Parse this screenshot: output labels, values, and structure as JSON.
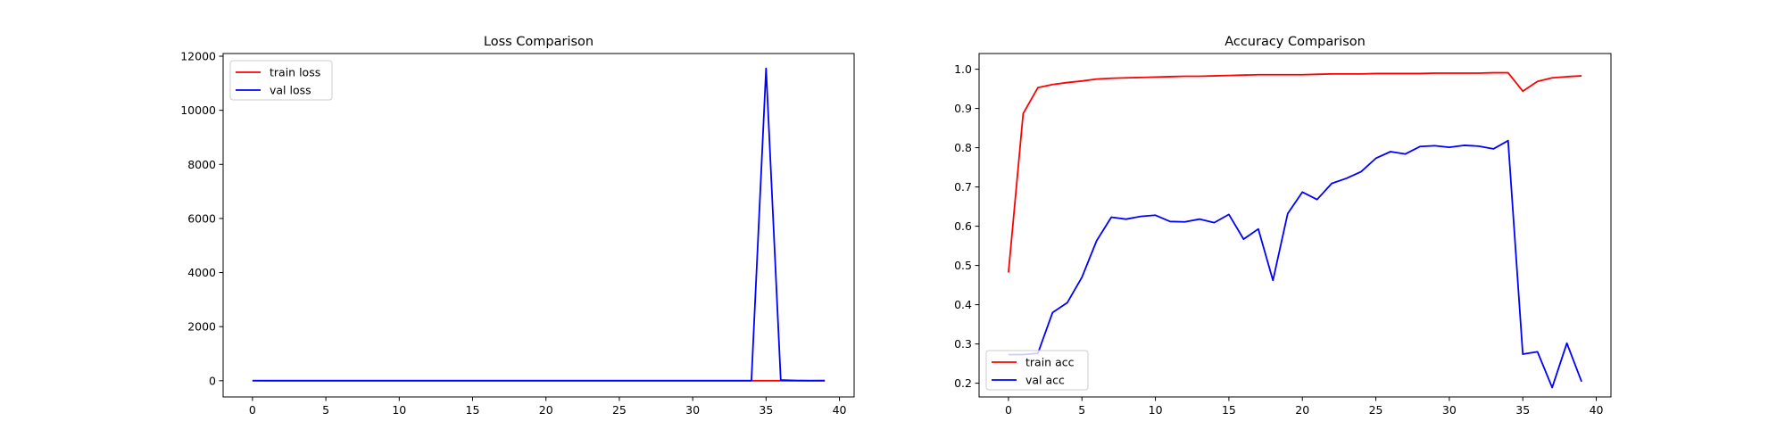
{
  "chart_data": [
    {
      "type": "line",
      "title": "Loss Comparison",
      "xlabel": "",
      "ylabel": "",
      "xlim": [
        -2,
        41
      ],
      "ylim": [
        -600,
        12100
      ],
      "xticks": [
        0,
        5,
        10,
        15,
        20,
        25,
        30,
        35,
        40
      ],
      "yticks": [
        0,
        2000,
        4000,
        6000,
        8000,
        10000,
        12000
      ],
      "grid": false,
      "legend_position": "upper-left",
      "x": [
        0,
        1,
        2,
        3,
        4,
        5,
        6,
        7,
        8,
        9,
        10,
        11,
        12,
        13,
        14,
        15,
        16,
        17,
        18,
        19,
        20,
        21,
        22,
        23,
        24,
        25,
        26,
        27,
        28,
        29,
        30,
        31,
        32,
        33,
        34,
        35,
        36,
        37,
        38,
        39
      ],
      "series": [
        {
          "name": "train loss",
          "color": "#ff0000",
          "values": [
            2.1,
            0.6,
            0.3,
            0.25,
            0.2,
            0.18,
            0.15,
            0.14,
            0.12,
            0.11,
            0.1,
            0.1,
            0.09,
            0.09,
            0.08,
            0.08,
            0.07,
            0.07,
            0.07,
            0.06,
            0.06,
            0.06,
            0.05,
            0.05,
            0.05,
            0.05,
            0.04,
            0.04,
            0.04,
            0.04,
            0.03,
            0.03,
            0.03,
            0.03,
            0.03,
            0.25,
            0.12,
            0.1,
            0.08,
            0.07
          ]
        },
        {
          "name": "val loss",
          "color": "#0000ff",
          "values": [
            2.5,
            2.3,
            2.4,
            2.2,
            2.0,
            1.9,
            1.7,
            1.6,
            1.7,
            1.6,
            1.6,
            1.7,
            1.7,
            1.7,
            1.8,
            1.7,
            2.0,
            1.8,
            2.2,
            1.8,
            1.5,
            1.6,
            1.4,
            1.3,
            1.2,
            1.1,
            1.0,
            1.0,
            1.0,
            1.0,
            1.0,
            1.0,
            1.0,
            1.0,
            1.0,
            11550,
            25,
            8,
            3,
            4
          ]
        }
      ]
    },
    {
      "type": "line",
      "title": "Accuracy Comparison",
      "xlabel": "",
      "ylabel": "",
      "xlim": [
        -2,
        41
      ],
      "ylim": [
        0.165,
        1.04
      ],
      "xticks": [
        0,
        5,
        10,
        15,
        20,
        25,
        30,
        35,
        40
      ],
      "yticks": [
        0.2,
        0.3,
        0.4,
        0.5,
        0.6,
        0.7,
        0.8,
        0.9,
        1.0
      ],
      "grid": false,
      "legend_position": "lower-left",
      "x": [
        0,
        1,
        2,
        3,
        4,
        5,
        6,
        7,
        8,
        9,
        10,
        11,
        12,
        13,
        14,
        15,
        16,
        17,
        18,
        19,
        20,
        21,
        22,
        23,
        24,
        25,
        26,
        27,
        28,
        29,
        30,
        31,
        32,
        33,
        34,
        35,
        36,
        37,
        38,
        39
      ],
      "series": [
        {
          "name": "train acc",
          "color": "#ff0000",
          "values": [
            0.482,
            0.887,
            0.953,
            0.961,
            0.966,
            0.97,
            0.975,
            0.977,
            0.978,
            0.979,
            0.98,
            0.981,
            0.982,
            0.982,
            0.983,
            0.984,
            0.985,
            0.986,
            0.986,
            0.986,
            0.986,
            0.987,
            0.988,
            0.988,
            0.988,
            0.989,
            0.989,
            0.989,
            0.989,
            0.99,
            0.99,
            0.99,
            0.99,
            0.991,
            0.991,
            0.944,
            0.969,
            0.978,
            0.981,
            0.983
          ]
        },
        {
          "name": "val acc",
          "color": "#0000ff",
          "values": [
            0.273,
            0.273,
            0.276,
            0.38,
            0.405,
            0.47,
            0.563,
            0.623,
            0.618,
            0.625,
            0.628,
            0.612,
            0.611,
            0.618,
            0.609,
            0.63,
            0.567,
            0.593,
            0.462,
            0.632,
            0.687,
            0.668,
            0.709,
            0.722,
            0.739,
            0.773,
            0.79,
            0.784,
            0.803,
            0.805,
            0.801,
            0.806,
            0.804,
            0.797,
            0.818,
            0.274,
            0.28,
            0.189,
            0.302,
            0.204
          ]
        }
      ]
    }
  ]
}
